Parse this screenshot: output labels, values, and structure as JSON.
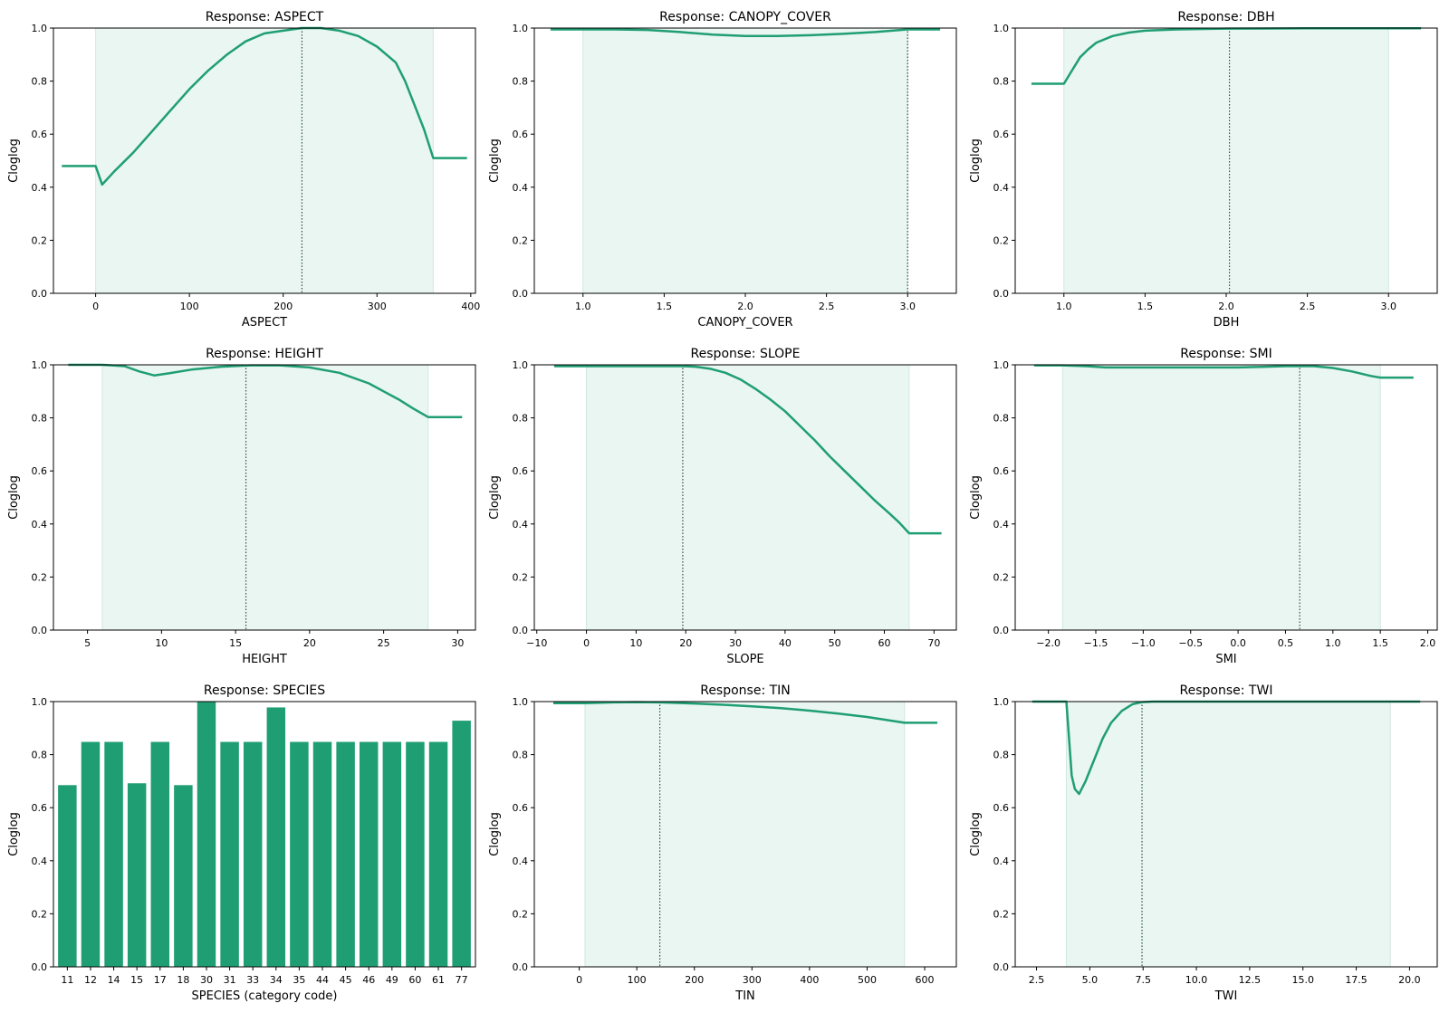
{
  "colors": {
    "line": "#1f9e74",
    "bar": "#1f9e74",
    "shade": "#eaf6f1",
    "shade_edge": "#cfe9de",
    "vline": "#2f4f4f"
  },
  "chart_data": [
    {
      "type": "line",
      "title": "Response: ASPECT",
      "xlabel": "ASPECT",
      "ylabel": "Cloglog",
      "xlim": [
        -45,
        405
      ],
      "ylim": [
        0.0,
        1.0
      ],
      "xticks": [
        0,
        100,
        200,
        300,
        400
      ],
      "xtick_labels": [
        "0",
        "100",
        "200",
        "300",
        "400"
      ],
      "yticks": [
        0.0,
        0.2,
        0.4,
        0.6,
        0.8,
        1.0
      ],
      "ytick_labels": [
        "0.0",
        "0.2",
        "0.4",
        "0.6",
        "0.8",
        "1.0"
      ],
      "shaded_range": [
        0,
        360
      ],
      "vline": 220,
      "x": [
        -36,
        0,
        7,
        20,
        40,
        60,
        80,
        100,
        120,
        140,
        160,
        180,
        200,
        220,
        240,
        260,
        280,
        300,
        320,
        330,
        340,
        350,
        360,
        396
      ],
      "y": [
        0.48,
        0.48,
        0.41,
        0.46,
        0.53,
        0.61,
        0.69,
        0.77,
        0.84,
        0.9,
        0.95,
        0.98,
        0.99,
        1.0,
        1.0,
        0.99,
        0.97,
        0.93,
        0.87,
        0.8,
        0.71,
        0.62,
        0.51,
        0.51
      ]
    },
    {
      "type": "line",
      "title": "Response: CANOPY_COVER",
      "xlabel": "CANOPY_COVER",
      "ylabel": "Cloglog",
      "xlim": [
        0.7,
        3.3
      ],
      "ylim": [
        0.0,
        1.0
      ],
      "xticks": [
        1.0,
        1.5,
        2.0,
        2.5,
        3.0
      ],
      "xtick_labels": [
        "1.0",
        "1.5",
        "2.0",
        "2.5",
        "3.0"
      ],
      "yticks": [
        0.0,
        0.2,
        0.4,
        0.6,
        0.8,
        1.0
      ],
      "ytick_labels": [
        "0.0",
        "0.2",
        "0.4",
        "0.6",
        "0.8",
        "1.0"
      ],
      "shaded_range": [
        1.0,
        3.0
      ],
      "vline": 3.0,
      "x": [
        0.8,
        1.0,
        1.2,
        1.4,
        1.6,
        1.8,
        2.0,
        2.2,
        2.4,
        2.6,
        2.8,
        3.0,
        3.2
      ],
      "y": [
        0.995,
        0.995,
        0.995,
        0.993,
        0.985,
        0.975,
        0.97,
        0.97,
        0.973,
        0.978,
        0.985,
        0.995,
        0.995
      ]
    },
    {
      "type": "line",
      "title": "Response: DBH",
      "xlabel": "DBH",
      "ylabel": "Cloglog",
      "xlim": [
        0.7,
        3.3
      ],
      "ylim": [
        0.0,
        1.0
      ],
      "xticks": [
        1.0,
        1.5,
        2.0,
        2.5,
        3.0
      ],
      "xtick_labels": [
        "1.0",
        "1.5",
        "2.0",
        "2.5",
        "3.0"
      ],
      "yticks": [
        0.0,
        0.2,
        0.4,
        0.6,
        0.8,
        1.0
      ],
      "ytick_labels": [
        "0.0",
        "0.2",
        "0.4",
        "0.6",
        "0.8",
        "1.0"
      ],
      "shaded_range": [
        1.0,
        3.0
      ],
      "vline": 2.02,
      "x": [
        0.8,
        1.0,
        1.05,
        1.1,
        1.15,
        1.2,
        1.3,
        1.4,
        1.5,
        1.7,
        2.0,
        2.5,
        3.0,
        3.2
      ],
      "y": [
        0.79,
        0.79,
        0.84,
        0.89,
        0.92,
        0.945,
        0.97,
        0.983,
        0.99,
        0.995,
        0.998,
        0.999,
        0.999,
        0.999
      ]
    },
    {
      "type": "line",
      "title": "Response: HEIGHT",
      "xlabel": "HEIGHT",
      "ylabel": "Cloglog",
      "xlim": [
        2.7,
        31.2
      ],
      "ylim": [
        0.0,
        1.0
      ],
      "xticks": [
        5,
        10,
        15,
        20,
        25,
        30
      ],
      "xtick_labels": [
        "5",
        "10",
        "15",
        "20",
        "25",
        "30"
      ],
      "yticks": [
        0.0,
        0.2,
        0.4,
        0.6,
        0.8,
        1.0
      ],
      "ytick_labels": [
        "0.0",
        "0.2",
        "0.4",
        "0.6",
        "0.8",
        "1.0"
      ],
      "shaded_range": [
        6.0,
        28.0
      ],
      "vline": 15.7,
      "x": [
        3.7,
        6.0,
        7.5,
        8.5,
        9.5,
        10.5,
        12,
        14,
        16,
        18,
        20,
        22,
        24,
        25,
        26,
        27,
        28,
        30.3
      ],
      "y": [
        1.0,
        1.0,
        0.995,
        0.975,
        0.96,
        0.968,
        0.982,
        0.993,
        0.998,
        0.998,
        0.99,
        0.97,
        0.93,
        0.9,
        0.87,
        0.835,
        0.803,
        0.803
      ]
    },
    {
      "type": "line",
      "title": "Response: SLOPE",
      "xlabel": "SLOPE",
      "ylabel": "Cloglog",
      "xlim": [
        -10.5,
        74.5
      ],
      "ylim": [
        0.0,
        1.0
      ],
      "xticks": [
        -10,
        0,
        10,
        20,
        30,
        40,
        50,
        60,
        70
      ],
      "xtick_labels": [
        "−10",
        "0",
        "10",
        "20",
        "30",
        "40",
        "50",
        "60",
        "70"
      ],
      "yticks": [
        0.0,
        0.2,
        0.4,
        0.6,
        0.8,
        1.0
      ],
      "ytick_labels": [
        "0.0",
        "0.2",
        "0.4",
        "0.6",
        "0.8",
        "1.0"
      ],
      "shaded_range": [
        0,
        65
      ],
      "vline": 19.4,
      "x": [
        -6.5,
        0,
        10,
        19.4,
        22,
        25,
        28,
        31,
        34,
        37,
        40,
        43,
        46,
        49,
        52,
        55,
        58,
        61,
        63,
        65,
        71.5
      ],
      "y": [
        0.995,
        0.995,
        0.995,
        0.995,
        0.993,
        0.985,
        0.97,
        0.945,
        0.91,
        0.87,
        0.825,
        0.77,
        0.715,
        0.655,
        0.6,
        0.545,
        0.49,
        0.44,
        0.405,
        0.365,
        0.365
      ]
    },
    {
      "type": "line",
      "title": "Response: SMI",
      "xlabel": "SMI",
      "ylabel": "Cloglog",
      "xlim": [
        -2.35,
        2.1
      ],
      "ylim": [
        0.0,
        1.0
      ],
      "xticks": [
        -2.0,
        -1.5,
        -1.0,
        -0.5,
        0.0,
        0.5,
        1.0,
        1.5,
        2.0
      ],
      "xtick_labels": [
        "−2.0",
        "−1.5",
        "−1.0",
        "−0.5",
        "0.0",
        "0.5",
        "1.0",
        "1.5",
        "2.0"
      ],
      "yticks": [
        0.0,
        0.2,
        0.4,
        0.6,
        0.8,
        1.0
      ],
      "ytick_labels": [
        "0.0",
        "0.2",
        "0.4",
        "0.6",
        "0.8",
        "1.0"
      ],
      "shaded_range": [
        -1.85,
        1.5
      ],
      "vline": 0.65,
      "x": [
        -2.15,
        -1.85,
        -1.6,
        -1.4,
        -1.0,
        0.0,
        0.5,
        0.8,
        1.0,
        1.2,
        1.4,
        1.5,
        1.85
      ],
      "y": [
        0.998,
        0.998,
        0.995,
        0.99,
        0.99,
        0.99,
        0.995,
        0.995,
        0.988,
        0.975,
        0.958,
        0.952,
        0.952
      ]
    },
    {
      "type": "bar",
      "title": "Response: SPECIES",
      "xlabel": "SPECIES (category code)",
      "ylabel": "Cloglog",
      "ylim": [
        0.0,
        1.0
      ],
      "yticks": [
        0.0,
        0.2,
        0.4,
        0.6,
        0.8,
        1.0
      ],
      "ytick_labels": [
        "0.0",
        "0.2",
        "0.4",
        "0.6",
        "0.8",
        "1.0"
      ],
      "categories": [
        "11",
        "12",
        "14",
        "15",
        "17",
        "18",
        "30",
        "31",
        "33",
        "34",
        "35",
        "44",
        "45",
        "46",
        "49",
        "60",
        "61",
        "77"
      ],
      "values": [
        0.685,
        0.848,
        0.848,
        0.692,
        0.848,
        0.685,
        1.0,
        0.848,
        0.848,
        0.978,
        0.848,
        0.848,
        0.848,
        0.848,
        0.848,
        0.848,
        0.848,
        0.928
      ]
    },
    {
      "type": "line",
      "title": "Response: TIN",
      "xlabel": "TIN",
      "ylabel": "Cloglog",
      "xlim": [
        -78,
        655
      ],
      "ylim": [
        0.0,
        1.0
      ],
      "xticks": [
        0,
        100,
        200,
        300,
        400,
        500,
        600
      ],
      "xtick_labels": [
        "0",
        "100",
        "200",
        "300",
        "400",
        "500",
        "600"
      ],
      "yticks": [
        0.0,
        0.2,
        0.4,
        0.6,
        0.8,
        1.0
      ],
      "ytick_labels": [
        "0.0",
        "0.2",
        "0.4",
        "0.6",
        "0.8",
        "1.0"
      ],
      "shaded_range": [
        10,
        565
      ],
      "vline": 140,
      "x": [
        -45,
        10,
        60,
        100,
        140,
        200,
        250,
        300,
        350,
        400,
        450,
        500,
        565,
        622
      ],
      "y": [
        0.994,
        0.994,
        0.997,
        0.998,
        0.997,
        0.993,
        0.988,
        0.982,
        0.975,
        0.966,
        0.955,
        0.942,
        0.92,
        0.92
      ]
    },
    {
      "type": "line",
      "title": "Response: TWI",
      "xlabel": "TWI",
      "ylabel": "Cloglog",
      "xlim": [
        1.5,
        21.3
      ],
      "ylim": [
        0.0,
        1.0
      ],
      "xticks": [
        2.5,
        5.0,
        7.5,
        10.0,
        12.5,
        15.0,
        17.5,
        20.0
      ],
      "xtick_labels": [
        "2.5",
        "5.0",
        "7.5",
        "10.0",
        "12.5",
        "15.0",
        "17.5",
        "20.0"
      ],
      "yticks": [
        0.0,
        0.2,
        0.4,
        0.6,
        0.8,
        1.0
      ],
      "ytick_labels": [
        "0.0",
        "0.2",
        "0.4",
        "0.6",
        "0.8",
        "1.0"
      ],
      "shaded_range": [
        3.9,
        19.1
      ],
      "vline": 7.45,
      "x": [
        2.3,
        3.9,
        4.15,
        4.3,
        4.5,
        4.8,
        5.2,
        5.6,
        6.0,
        6.5,
        7.0,
        7.45,
        8.0,
        10,
        15,
        19.1,
        20.5
      ],
      "y": [
        1.0,
        1.0,
        0.72,
        0.67,
        0.652,
        0.7,
        0.78,
        0.86,
        0.92,
        0.965,
        0.99,
        0.998,
        1.0,
        1.0,
        1.0,
        1.0,
        1.0
      ]
    }
  ]
}
